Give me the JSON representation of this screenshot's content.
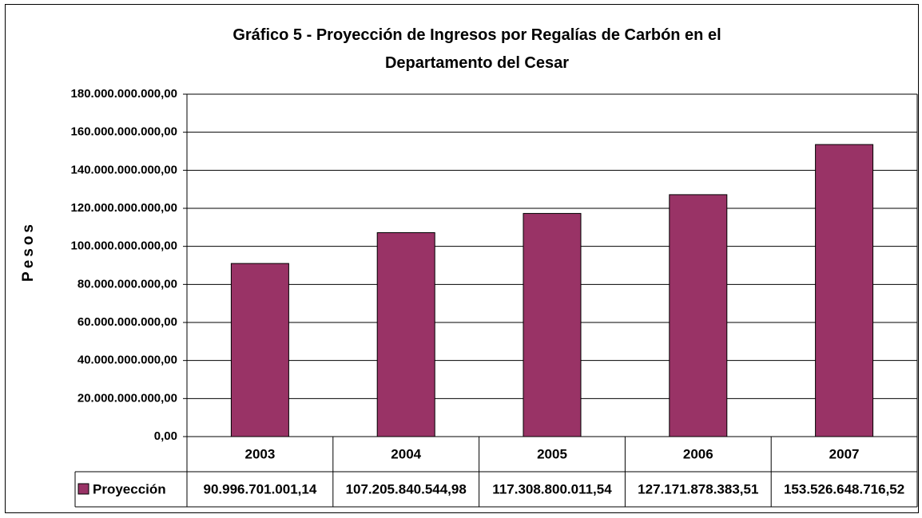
{
  "chart_data": {
    "type": "bar",
    "title": "Gráfico 5 - Proyección de Ingresos por Regalías de Carbón en el Departamento del Cesar",
    "y_label": "Pesos",
    "categories": [
      "2003",
      "2004",
      "2005",
      "2006",
      "2007"
    ],
    "series": [
      {
        "name": "Proyección",
        "color": "#993366",
        "values": [
          90996701001.14,
          107205840544.98,
          117308800011.54,
          127171878383.51,
          153526648716.52
        ],
        "value_labels": [
          "90.996.701.001,14",
          "107.205.840.544,98",
          "117.308.800.011,54",
          "127.171.878.383,51",
          "153.526.648.716,52"
        ]
      }
    ],
    "ylim": [
      0,
      180000000000
    ],
    "yticks": [
      {
        "value": 0,
        "label": "0,00"
      },
      {
        "value": 20000000000,
        "label": "20.000.000.000,00"
      },
      {
        "value": 40000000000,
        "label": "40.000.000.000,00"
      },
      {
        "value": 60000000000,
        "label": "60.000.000.000,00"
      },
      {
        "value": 80000000000,
        "label": "80.000.000.000,00"
      },
      {
        "value": 100000000000,
        "label": "100.000.000.000,00"
      },
      {
        "value": 120000000000,
        "label": "120.000.000.000,00"
      },
      {
        "value": 140000000000,
        "label": "140.000.000.000,00"
      },
      {
        "value": 160000000000,
        "label": "160.000.000.000,00"
      },
      {
        "value": 180000000000,
        "label": "180.000.000.000,00"
      }
    ],
    "grid": true
  }
}
